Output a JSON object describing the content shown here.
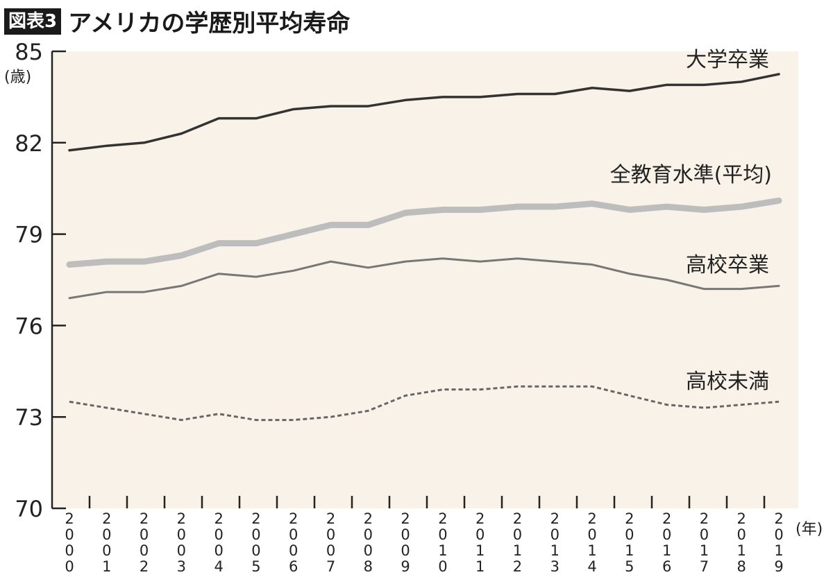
{
  "chart_data": {
    "type": "line",
    "badge": "図表3",
    "title": "アメリカの学歴別平均寿命",
    "ylabel": "(歳)",
    "xlabel": "(年)",
    "ylim": [
      70,
      85
    ],
    "yticks": [
      70,
      73,
      76,
      79,
      82,
      85
    ],
    "x": [
      2000,
      2001,
      2002,
      2003,
      2004,
      2005,
      2006,
      2007,
      2008,
      2009,
      2010,
      2011,
      2012,
      2013,
      2014,
      2015,
      2016,
      2017,
      2018,
      2019
    ],
    "grid": false,
    "background": "#f8f2e8",
    "series": [
      {
        "name": "大学卒業",
        "color": "#333333",
        "style": "solid-thin",
        "values": [
          81.75,
          81.9,
          82.0,
          82.3,
          82.8,
          82.8,
          83.1,
          83.2,
          83.2,
          83.4,
          83.5,
          83.5,
          83.6,
          83.6,
          83.8,
          83.7,
          83.9,
          83.9,
          84.0,
          84.25
        ]
      },
      {
        "name": "全教育水準(平均)",
        "color": "#bdbdbd",
        "style": "solid-thick",
        "values": [
          78.0,
          78.1,
          78.1,
          78.3,
          78.7,
          78.7,
          79.0,
          79.3,
          79.3,
          79.7,
          79.8,
          79.8,
          79.9,
          79.9,
          80.0,
          79.8,
          79.9,
          79.8,
          79.9,
          80.1
        ]
      },
      {
        "name": "高校卒業",
        "color": "#777777",
        "style": "solid",
        "values": [
          76.9,
          77.1,
          77.1,
          77.3,
          77.7,
          77.6,
          77.8,
          78.1,
          77.9,
          78.1,
          78.2,
          78.1,
          78.2,
          78.1,
          78.0,
          77.7,
          77.5,
          77.2,
          77.2,
          77.3
        ]
      },
      {
        "name": "高校未満",
        "color": "#666666",
        "style": "dashed",
        "values": [
          73.5,
          73.3,
          73.1,
          72.9,
          73.1,
          72.9,
          72.9,
          73.0,
          73.2,
          73.7,
          73.9,
          73.9,
          74.0,
          74.0,
          74.0,
          73.7,
          73.4,
          73.3,
          73.4,
          73.5
        ]
      }
    ]
  }
}
